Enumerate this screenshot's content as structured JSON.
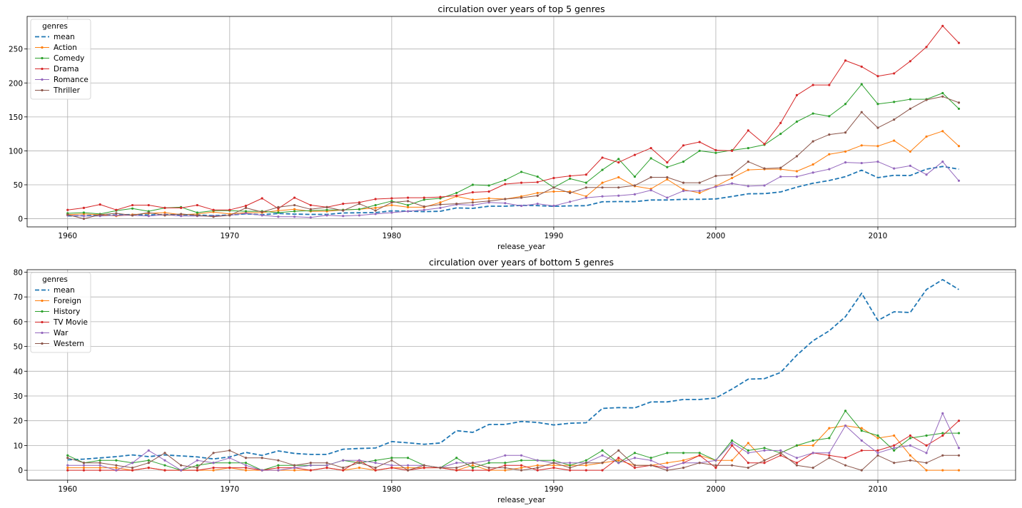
{
  "chart_data": [
    {
      "type": "line",
      "title": "circulation over years of top 5 genres",
      "xlabel": "release_year",
      "ylabel": "",
      "xlim": [
        1957.5,
        2018.5
      ],
      "ylim": [
        -12,
        298
      ],
      "xticks": [
        1960,
        1970,
        1980,
        1990,
        2000,
        2010
      ],
      "yticks": [
        0,
        50,
        100,
        150,
        200,
        250
      ],
      "grid": true,
      "legend_title": "genres",
      "legend_position": "top-left",
      "x_start": 1960,
      "series": [
        {
          "name": "mean",
          "color": "#1f77b4",
          "style": "dashed",
          "values": [
            4.2,
            4.5,
            5,
            5.5,
            6.2,
            5.5,
            6.2,
            5.8,
            5.4,
            4.6,
            5.4,
            7.2,
            6,
            7.8,
            6.8,
            6.4,
            6.4,
            8.5,
            8.8,
            9,
            11.6,
            11.1,
            10.5,
            11,
            16,
            15.3,
            18.5,
            18.5,
            19.7,
            19.3,
            18.3,
            19,
            19.2,
            25,
            25.3,
            25.2,
            27.6,
            27.6,
            28.6,
            28.6,
            29.2,
            32.8,
            36.8,
            37,
            39.5,
            46.5,
            52.3,
            56.3,
            62,
            71.5,
            60.5,
            64,
            63.7,
            73,
            77,
            73
          ]
        },
        {
          "name": "Action",
          "color": "#ff7f0e",
          "style": "solid",
          "values": [
            6,
            7,
            6,
            4,
            6,
            8,
            9,
            6,
            7,
            10,
            7,
            9,
            9,
            12,
            14,
            11,
            11,
            13,
            14,
            16,
            20,
            17,
            17,
            24,
            33,
            28,
            30,
            29,
            33,
            38,
            40,
            40,
            33,
            53,
            61,
            48,
            44,
            58,
            43,
            38,
            48,
            60,
            72,
            73,
            73,
            70,
            80,
            95,
            99,
            108,
            107,
            115,
            99,
            121,
            129,
            107
          ]
        },
        {
          "name": "Comedy",
          "color": "#2ca02c",
          "style": "solid",
          "values": [
            8,
            9,
            7,
            12,
            15,
            11,
            16,
            17,
            9,
            12,
            12,
            11,
            11,
            9,
            11,
            12,
            13,
            13,
            14,
            20,
            26,
            20,
            28,
            30,
            38,
            50,
            49,
            57,
            69,
            62,
            46,
            59,
            53,
            72,
            88,
            62,
            89,
            76,
            84,
            100,
            97,
            101,
            104,
            109,
            125,
            143,
            155,
            151,
            169,
            198,
            169,
            172,
            176,
            176,
            185,
            162
          ]
        },
        {
          "name": "Drama",
          "color": "#d62728",
          "style": "solid",
          "values": [
            13,
            16,
            21,
            13,
            20,
            20,
            16,
            16,
            20,
            13,
            13,
            19,
            30,
            15,
            31,
            20,
            17,
            22,
            24,
            29,
            30,
            31,
            31,
            32,
            34,
            39,
            40,
            51,
            53,
            54,
            60,
            63,
            65,
            90,
            83,
            94,
            104,
            83,
            108,
            113,
            101,
            100,
            130,
            110,
            141,
            182,
            197,
            197,
            233,
            224,
            210,
            214,
            232,
            253,
            284,
            259
          ]
        },
        {
          "name": "Romance",
          "color": "#9467bd",
          "style": "solid",
          "values": [
            5,
            4,
            4,
            5,
            5,
            4,
            6,
            4,
            4,
            4,
            5,
            8,
            5,
            3,
            3,
            2,
            5,
            4,
            5,
            7,
            9,
            11,
            13,
            16,
            21,
            20,
            24,
            23,
            19,
            22,
            19,
            25,
            31,
            33,
            34,
            36,
            42,
            31,
            41,
            41,
            47,
            52,
            48,
            49,
            62,
            62,
            68,
            73,
            83,
            82,
            84,
            74,
            78,
            65,
            84,
            56
          ]
        },
        {
          "name": "Thriller",
          "color": "#8c564b",
          "style": "solid",
          "values": [
            6,
            0,
            6,
            8,
            5,
            9,
            5,
            7,
            5,
            3,
            5,
            16,
            10,
            17,
            20,
            14,
            17,
            12,
            22,
            12,
            24,
            26,
            18,
            21,
            22,
            24,
            26,
            29,
            31,
            34,
            46,
            38,
            46,
            46,
            46,
            49,
            61,
            61,
            53,
            53,
            63,
            65,
            84,
            74,
            75,
            92,
            114,
            124,
            127,
            157,
            134,
            146,
            162,
            175,
            180,
            171
          ]
        }
      ]
    },
    {
      "type": "line",
      "title": "circulation over years of bottom 5 genres",
      "xlabel": "release_year",
      "ylabel": "",
      "xlim": [
        1957.5,
        2018.5
      ],
      "ylim": [
        -4,
        81
      ],
      "xticks": [
        1960,
        1970,
        1980,
        1990,
        2000,
        2010
      ],
      "yticks": [
        0,
        10,
        20,
        30,
        40,
        50,
        60,
        70,
        80
      ],
      "grid": true,
      "legend_title": "genres",
      "legend_position": "top-left",
      "x_start": 1960,
      "series": [
        {
          "name": "mean",
          "color": "#1f77b4",
          "style": "dashed",
          "values": [
            4.2,
            4.5,
            5,
            5.5,
            6.2,
            5.5,
            6.2,
            5.8,
            5.4,
            4.6,
            5.4,
            7.2,
            6,
            7.8,
            6.8,
            6.4,
            6.4,
            8.5,
            8.8,
            9,
            11.6,
            11.1,
            10.5,
            11,
            16,
            15.3,
            18.5,
            18.5,
            19.7,
            19.3,
            18.3,
            19,
            19.2,
            25,
            25.3,
            25.2,
            27.6,
            27.6,
            28.6,
            28.6,
            29.2,
            32.8,
            36.8,
            37,
            39.5,
            46.5,
            52.3,
            56.3,
            62,
            71.5,
            60.5,
            64,
            63.7,
            73,
            77,
            73
          ]
        },
        {
          "name": "Foreign",
          "color": "#ff7f0e",
          "style": "solid",
          "values": [
            1,
            1,
            1,
            1,
            0,
            1,
            0,
            0,
            0,
            0,
            1,
            0,
            0,
            0,
            0,
            0,
            1,
            0,
            1,
            0,
            1,
            1,
            1,
            1,
            0,
            2,
            0,
            0,
            1,
            2,
            2,
            2,
            2,
            3,
            4,
            2,
            2,
            3,
            4,
            6,
            4,
            4,
            11,
            4,
            7,
            10,
            10,
            17,
            18,
            17,
            13,
            14,
            6,
            0,
            0,
            0
          ]
        },
        {
          "name": "History",
          "color": "#2ca02c",
          "style": "solid",
          "values": [
            6,
            3,
            4,
            4,
            3,
            4,
            2,
            0,
            2,
            3,
            3,
            3,
            0,
            2,
            2,
            2,
            2,
            4,
            3,
            4,
            5,
            5,
            2,
            1,
            5,
            1,
            3,
            3,
            4,
            4,
            4,
            2,
            4,
            8,
            3,
            7,
            5,
            7,
            7,
            7,
            4,
            12,
            8,
            9,
            7,
            10,
            12,
            13,
            24,
            16,
            14,
            8,
            13,
            14,
            15,
            15
          ]
        },
        {
          "name": "TV Movie",
          "color": "#d62728",
          "style": "solid",
          "values": [
            0,
            0,
            0,
            0,
            0,
            1,
            0,
            0,
            0,
            1,
            1,
            1,
            0,
            1,
            1,
            0,
            1,
            0,
            4,
            0,
            1,
            0,
            1,
            1,
            0,
            0,
            0,
            2,
            2,
            0,
            1,
            0,
            0,
            0,
            5,
            1,
            2,
            1,
            3,
            6,
            1,
            10,
            3,
            3,
            6,
            3,
            7,
            6,
            5,
            8,
            8,
            10,
            14,
            10,
            14,
            20
          ]
        },
        {
          "name": "War",
          "color": "#9467bd",
          "style": "solid",
          "values": [
            2,
            2,
            2,
            0,
            3,
            8,
            4,
            0,
            4,
            3,
            5,
            2,
            0,
            0,
            1,
            2,
            2,
            4,
            4,
            3,
            2,
            2,
            2,
            1,
            3,
            3,
            4,
            6,
            6,
            4,
            3,
            3,
            3,
            6,
            3,
            5,
            4,
            1,
            3,
            3,
            4,
            11,
            7,
            8,
            8,
            5,
            7,
            7,
            18,
            12,
            7,
            9,
            10,
            7,
            23,
            9
          ]
        },
        {
          "name": "Western",
          "color": "#8c564b",
          "style": "solid",
          "values": [
            5,
            3,
            3,
            2,
            1,
            3,
            7,
            2,
            1,
            7,
            8,
            5,
            5,
            4,
            2,
            3,
            3,
            1,
            3,
            1,
            4,
            0,
            2,
            1,
            1,
            3,
            1,
            1,
            0,
            1,
            3,
            1,
            3,
            3,
            8,
            2,
            2,
            0,
            1,
            3,
            2,
            2,
            1,
            4,
            7,
            2,
            1,
            5,
            2,
            0,
            6,
            3,
            4,
            3,
            6,
            6
          ]
        }
      ]
    }
  ]
}
